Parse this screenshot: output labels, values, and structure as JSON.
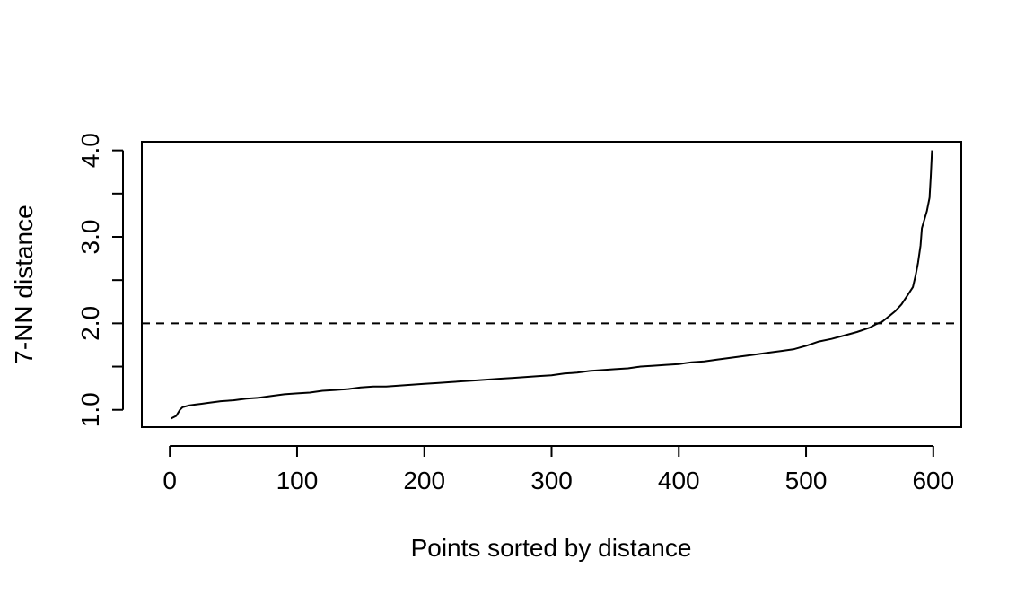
{
  "chart_data": {
    "type": "line",
    "title": "",
    "xlabel": "Points sorted by distance",
    "ylabel": "7-NN distance",
    "xlim": [
      -22,
      622
    ],
    "ylim": [
      0.8,
      4.1
    ],
    "x_ticks": [
      0,
      100,
      200,
      300,
      400,
      500,
      600
    ],
    "x_tick_labels": [
      "0",
      "100",
      "200",
      "300",
      "400",
      "500",
      "600"
    ],
    "y_ticks": [
      1.0,
      1.5,
      2.0,
      2.5,
      3.0,
      3.5,
      4.0
    ],
    "y_tick_labels": [
      "1.0",
      "",
      "2.0",
      "",
      "3.0",
      "",
      "4.0"
    ],
    "reference_line": {
      "y": 2.0,
      "style": "dashed"
    },
    "grid": false,
    "series": [
      {
        "x": [
          1,
          5,
          8,
          10,
          15,
          20,
          25,
          30,
          40,
          50,
          60,
          70,
          80,
          90,
          100,
          110,
          120,
          130,
          140,
          150,
          160,
          170,
          180,
          190,
          200,
          210,
          220,
          230,
          240,
          250,
          260,
          270,
          280,
          290,
          300,
          310,
          320,
          330,
          340,
          350,
          360,
          370,
          380,
          390,
          400,
          410,
          420,
          430,
          440,
          450,
          460,
          470,
          480,
          490,
          500,
          510,
          520,
          530,
          540,
          550,
          555,
          560,
          565,
          570,
          575,
          580,
          584,
          586,
          588,
          590,
          591,
          592,
          593,
          595,
          597,
          598,
          599
        ],
        "y": [
          0.9,
          0.93,
          1.0,
          1.03,
          1.05,
          1.06,
          1.07,
          1.08,
          1.1,
          1.11,
          1.13,
          1.14,
          1.16,
          1.18,
          1.19,
          1.2,
          1.22,
          1.23,
          1.24,
          1.26,
          1.27,
          1.27,
          1.28,
          1.29,
          1.3,
          1.31,
          1.32,
          1.33,
          1.34,
          1.35,
          1.36,
          1.37,
          1.38,
          1.39,
          1.4,
          1.42,
          1.43,
          1.45,
          1.46,
          1.47,
          1.48,
          1.5,
          1.51,
          1.52,
          1.53,
          1.55,
          1.56,
          1.58,
          1.6,
          1.62,
          1.64,
          1.66,
          1.68,
          1.7,
          1.74,
          1.79,
          1.82,
          1.86,
          1.9,
          1.95,
          1.99,
          2.02,
          2.08,
          2.14,
          2.22,
          2.33,
          2.42,
          2.55,
          2.7,
          2.9,
          3.1,
          3.15,
          3.2,
          3.3,
          3.45,
          3.7,
          4.0
        ]
      }
    ]
  }
}
